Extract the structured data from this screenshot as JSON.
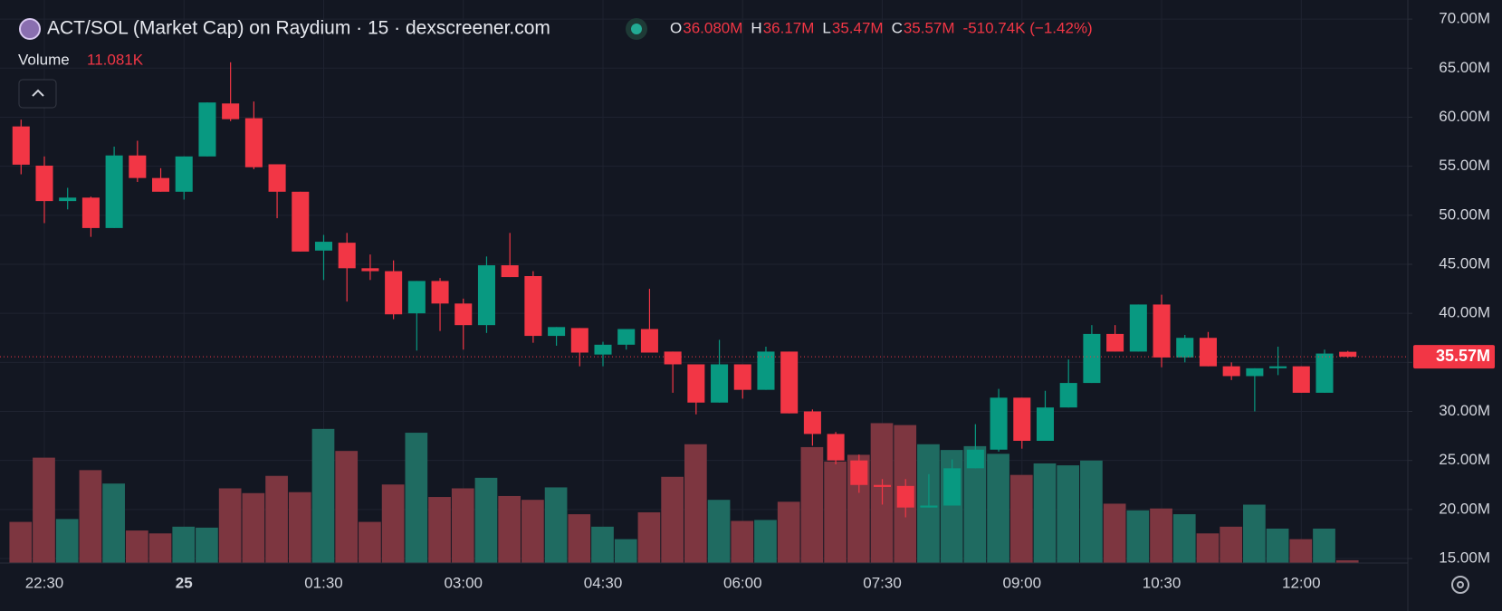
{
  "chart_data": {
    "type": "candlestick",
    "title": "ACT/SOL (Market Cap) on Raydium · 15 · dexscreener.com",
    "legend_ohlc": [
      {
        "key": "O",
        "value": "36.080M"
      },
      {
        "key": "H",
        "value": "36.17M"
      },
      {
        "key": "L",
        "value": "35.47M"
      },
      {
        "key": "C",
        "value": "35.57M"
      }
    ],
    "change": "-510.74K (−1.42%)",
    "volume_name": "Volume",
    "volume_value": "11.081K",
    "categories": [
      null,
      "22:30",
      null,
      null,
      null,
      null,
      null,
      "25",
      null,
      null,
      null,
      null,
      null,
      "01:30",
      null,
      null,
      null,
      null,
      null,
      "03:00",
      null,
      null,
      null,
      null,
      null,
      "04:30",
      null,
      null,
      null,
      null,
      null,
      "06:00",
      null,
      null,
      null,
      null,
      null,
      "07:30",
      null,
      null,
      null,
      null,
      null,
      "09:00",
      null,
      null,
      null,
      null,
      null,
      "10:30",
      null,
      null,
      null,
      null,
      null,
      "12:00",
      null,
      null
    ],
    "open": [
      59.06,
      55.06,
      51.45,
      51.8,
      48.7,
      56.1,
      53.8,
      52.4,
      56.0,
      61.4,
      59.9,
      55.2,
      52.4,
      46.4,
      47.2,
      44.6,
      44.3,
      40.0,
      43.3,
      41.0,
      38.8,
      44.9,
      43.8,
      37.7,
      38.5,
      35.8,
      36.8,
      38.4,
      36.1,
      34.8,
      30.9,
      34.8,
      32.2,
      36.1,
      30.0,
      27.7,
      25.0,
      22.5,
      22.4,
      20.2,
      20.4,
      24.2,
      26.1,
      31.4,
      27.0,
      30.4,
      32.9,
      37.9,
      36.1,
      40.9,
      35.5,
      37.5,
      34.6,
      33.6,
      34.4,
      34.6,
      31.9,
      36.08
    ],
    "high": [
      59.75,
      56.0,
      52.8,
      51.9,
      57.0,
      57.6,
      54.8,
      56.0,
      61.5,
      65.6,
      61.6,
      55.2,
      52.4,
      48.0,
      48.2,
      46.0,
      45.4,
      43.3,
      43.6,
      41.5,
      45.8,
      48.2,
      44.3,
      38.6,
      38.5,
      37.1,
      38.4,
      42.5,
      36.1,
      34.8,
      37.3,
      34.8,
      36.6,
      36.1,
      30.2,
      27.9,
      25.6,
      23.1,
      23.1,
      23.6,
      25.1,
      28.7,
      32.3,
      31.4,
      32.1,
      35.3,
      38.8,
      38.8,
      40.9,
      41.9,
      37.8,
      38.1,
      35.0,
      34.4,
      36.6,
      34.6,
      36.3,
      36.17
    ],
    "low": [
      54.18,
      49.2,
      50.6,
      47.8,
      48.7,
      53.4,
      52.4,
      51.6,
      56.0,
      59.6,
      54.7,
      49.7,
      46.3,
      43.4,
      41.2,
      43.4,
      39.4,
      36.2,
      38.2,
      36.3,
      38.0,
      43.7,
      37.0,
      36.7,
      34.6,
      34.6,
      36.3,
      36.0,
      31.9,
      29.7,
      30.9,
      31.3,
      32.2,
      29.8,
      26.5,
      24.6,
      21.7,
      20.5,
      19.2,
      20.2,
      20.4,
      24.2,
      25.9,
      26.2,
      27.0,
      30.4,
      32.9,
      36.1,
      36.1,
      34.5,
      35.0,
      34.6,
      33.2,
      30.0,
      33.7,
      31.9,
      31.9,
      35.47
    ],
    "close": [
      55.16,
      51.45,
      51.8,
      48.7,
      56.1,
      53.8,
      52.4,
      56.0,
      61.5,
      59.8,
      54.9,
      52.4,
      46.3,
      47.3,
      44.6,
      44.3,
      39.9,
      43.3,
      41.0,
      38.8,
      44.9,
      43.7,
      37.7,
      38.6,
      36.0,
      36.8,
      38.4,
      36.0,
      34.8,
      30.9,
      34.8,
      32.2,
      36.1,
      29.8,
      27.7,
      25.0,
      22.5,
      22.3,
      20.2,
      20.4,
      24.2,
      26.1,
      31.4,
      27.0,
      30.4,
      32.9,
      37.9,
      36.1,
      40.9,
      35.5,
      37.5,
      34.6,
      33.6,
      34.4,
      34.6,
      31.9,
      35.9,
      35.57
    ],
    "volume": [
      159100,
      407000,
      170200,
      358900,
      307100,
      125800,
      114700,
      140600,
      136900,
      288600,
      270100,
      336700,
      273800,
      518000,
      432900,
      159100,
      303400,
      503200,
      255300,
      288600,
      329300,
      259000,
      244200,
      292300,
      188700,
      140600,
      92500,
      196100,
      333000,
      458800,
      244200,
      162800,
      166500,
      236800,
      447700,
      392200,
      418100,
      540200,
      532800,
      458800,
      436600,
      451400,
      421800,
      340400,
      384800,
      377400,
      395900,
      229400,
      203500,
      210900,
      188700,
      114700,
      140600,
      225700,
      133200,
      92500,
      133200,
      11081
    ],
    "up_color": "#089981",
    "down_color": "#f23645",
    "up_volume_color": "#1f6b61",
    "down_volume_color": "#7d3640",
    "ylim": [
      14.53,
      71.17
    ],
    "yticks": [
      {
        "value": 15,
        "label": "15.00M"
      },
      {
        "value": 20,
        "label": "20.00M"
      },
      {
        "value": 25,
        "label": "25.00M"
      },
      {
        "value": 30,
        "label": "30.00M"
      },
      {
        "value": 35,
        "label": "35.00M"
      },
      {
        "value": 40,
        "label": "40.00M"
      },
      {
        "value": 45,
        "label": "45.00M"
      },
      {
        "value": 50,
        "label": "50.00M"
      },
      {
        "value": 55,
        "label": "55.00M"
      },
      {
        "value": 60,
        "label": "60.00M"
      },
      {
        "value": 65,
        "label": "65.00M"
      },
      {
        "value": 70,
        "label": "70.00M"
      }
    ],
    "last_price": {
      "value": 35.57,
      "label": "35.57M"
    },
    "grid": true
  }
}
